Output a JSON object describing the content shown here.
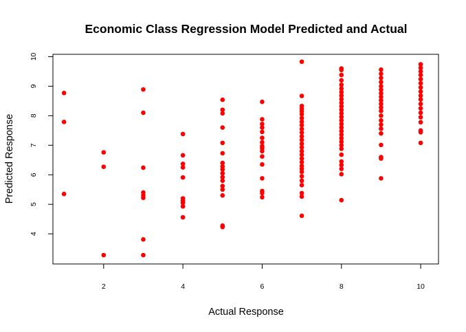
{
  "chart_data": {
    "type": "scatter",
    "title": "Economic Class Regression Model Predicted and Actual",
    "xlabel": "Actual Response",
    "ylabel": "Predicted Response",
    "xlim": [
      0.72,
      10.45
    ],
    "ylim": [
      2.98,
      10.08
    ],
    "xticks": [
      2,
      4,
      6,
      8,
      10
    ],
    "yticks": [
      4,
      5,
      6,
      7,
      8,
      9,
      10
    ],
    "grid": false,
    "legend": "none",
    "point_color": "#ff0000",
    "points": [
      [
        1,
        8.77
      ],
      [
        1,
        7.79
      ],
      [
        1,
        5.35
      ],
      [
        2,
        6.76
      ],
      [
        2,
        6.27
      ],
      [
        2,
        3.28
      ],
      [
        3,
        8.89
      ],
      [
        3,
        8.1
      ],
      [
        3,
        6.24
      ],
      [
        3,
        5.4
      ],
      [
        3,
        5.3
      ],
      [
        3,
        5.22
      ],
      [
        3,
        3.81
      ],
      [
        3,
        3.28
      ],
      [
        4,
        7.38
      ],
      [
        4,
        6.66
      ],
      [
        4,
        6.37
      ],
      [
        4,
        6.25
      ],
      [
        4,
        5.91
      ],
      [
        4,
        5.2
      ],
      [
        4,
        5.12
      ],
      [
        4,
        5.05
      ],
      [
        4,
        4.93
      ],
      [
        4,
        4.56
      ],
      [
        5,
        8.54
      ],
      [
        5,
        8.2
      ],
      [
        5,
        8.08
      ],
      [
        5,
        7.6
      ],
      [
        5,
        7.08
      ],
      [
        5,
        6.73
      ],
      [
        5,
        6.4
      ],
      [
        5,
        6.28
      ],
      [
        5,
        6.18
      ],
      [
        5,
        6.05
      ],
      [
        5,
        5.92
      ],
      [
        5,
        5.8
      ],
      [
        5,
        5.62
      ],
      [
        5,
        5.5
      ],
      [
        5,
        5.3
      ],
      [
        5,
        4.28
      ],
      [
        5,
        4.23
      ],
      [
        6,
        8.47
      ],
      [
        6,
        7.88
      ],
      [
        6,
        7.72
      ],
      [
        6,
        7.6
      ],
      [
        6,
        7.45
      ],
      [
        6,
        7.25
      ],
      [
        6,
        7.1
      ],
      [
        6,
        6.97
      ],
      [
        6,
        6.9
      ],
      [
        6,
        6.8
      ],
      [
        6,
        6.62
      ],
      [
        6,
        6.35
      ],
      [
        6,
        5.88
      ],
      [
        6,
        5.45
      ],
      [
        6,
        5.38
      ],
      [
        6,
        5.24
      ],
      [
        7,
        9.83
      ],
      [
        7,
        8.67
      ],
      [
        7,
        8.33
      ],
      [
        7,
        8.24
      ],
      [
        7,
        8.15
      ],
      [
        7,
        8.05
      ],
      [
        7,
        7.92
      ],
      [
        7,
        7.8
      ],
      [
        7,
        7.68
      ],
      [
        7,
        7.55
      ],
      [
        7,
        7.43
      ],
      [
        7,
        7.3
      ],
      [
        7,
        7.18
      ],
      [
        7,
        7.05
      ],
      [
        7,
        6.93
      ],
      [
        7,
        6.8
      ],
      [
        7,
        6.68
      ],
      [
        7,
        6.55
      ],
      [
        7,
        6.43
      ],
      [
        7,
        6.3
      ],
      [
        7,
        6.2
      ],
      [
        7,
        6.1
      ],
      [
        7,
        5.95
      ],
      [
        7,
        5.8
      ],
      [
        7,
        5.65
      ],
      [
        7,
        5.38
      ],
      [
        7,
        5.26
      ],
      [
        7,
        4.61
      ],
      [
        8,
        9.6
      ],
      [
        8,
        9.55
      ],
      [
        8,
        9.38
      ],
      [
        8,
        9.2
      ],
      [
        8,
        9.05
      ],
      [
        8,
        8.92
      ],
      [
        8,
        8.8
      ],
      [
        8,
        8.68
      ],
      [
        8,
        8.56
      ],
      [
        8,
        8.44
      ],
      [
        8,
        8.32
      ],
      [
        8,
        8.2
      ],
      [
        8,
        8.08
      ],
      [
        8,
        7.96
      ],
      [
        8,
        7.84
      ],
      [
        8,
        7.72
      ],
      [
        8,
        7.6
      ],
      [
        8,
        7.48
      ],
      [
        8,
        7.36
      ],
      [
        8,
        7.24
      ],
      [
        8,
        7.12
      ],
      [
        8,
        7.0
      ],
      [
        8,
        6.88
      ],
      [
        8,
        6.68
      ],
      [
        8,
        6.45
      ],
      [
        8,
        6.33
      ],
      [
        8,
        6.2
      ],
      [
        8,
        6.02
      ],
      [
        8,
        5.14
      ],
      [
        9,
        9.56
      ],
      [
        9,
        9.42
      ],
      [
        9,
        9.28
      ],
      [
        9,
        9.14
      ],
      [
        9,
        9.0
      ],
      [
        9,
        8.88
      ],
      [
        9,
        8.76
      ],
      [
        9,
        8.64
      ],
      [
        9,
        8.52
      ],
      [
        9,
        8.4
      ],
      [
        9,
        8.28
      ],
      [
        9,
        8.16
      ],
      [
        9,
        8.0
      ],
      [
        9,
        7.84
      ],
      [
        9,
        7.7
      ],
      [
        9,
        7.56
      ],
      [
        9,
        7.4
      ],
      [
        9,
        7.01
      ],
      [
        9,
        6.6
      ],
      [
        9,
        6.55
      ],
      [
        9,
        5.88
      ],
      [
        10,
        9.74
      ],
      [
        10,
        9.62
      ],
      [
        10,
        9.5
      ],
      [
        10,
        9.38
      ],
      [
        10,
        9.24
      ],
      [
        10,
        9.1
      ],
      [
        10,
        8.96
      ],
      [
        10,
        8.82
      ],
      [
        10,
        8.68
      ],
      [
        10,
        8.55
      ],
      [
        10,
        8.4
      ],
      [
        10,
        8.25
      ],
      [
        10,
        8.1
      ],
      [
        10,
        7.95
      ],
      [
        10,
        7.78
      ],
      [
        10,
        7.5
      ],
      [
        10,
        7.44
      ],
      [
        10,
        7.08
      ]
    ]
  }
}
